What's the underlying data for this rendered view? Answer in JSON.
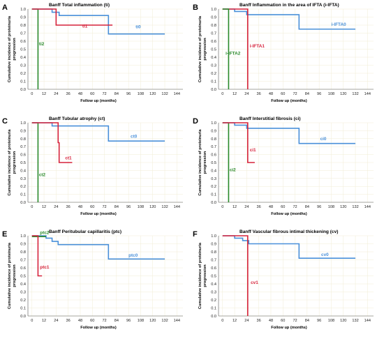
{
  "chart_data": [
    {
      "type": "line",
      "letter": "A",
      "title": "Banff Total inflammation (ti)",
      "xlabel": "Follow up (months)",
      "ylabel": "Cumulative incidence of proteinuria progression",
      "xticks": [
        0,
        12,
        24,
        36,
        48,
        60,
        72,
        84,
        96,
        108,
        120,
        132,
        144
      ],
      "yticks": [
        0.0,
        0.1,
        0.2,
        0.3,
        0.4,
        0.5,
        0.6,
        0.7,
        0.8,
        0.9,
        1.0
      ],
      "xlim": [
        -4,
        150
      ],
      "ylim": [
        0,
        1.0
      ],
      "grid": true,
      "series": [
        {
          "name": "ti2",
          "color": "#2a8a2a",
          "x": [
            0,
            6,
            6
          ],
          "y": [
            1.0,
            1.0,
            0.0
          ]
        },
        {
          "name": "ti0",
          "color": "#4a90d9",
          "x": [
            0,
            20,
            20,
            27,
            27,
            76,
            76,
            132
          ],
          "y": [
            1.0,
            1.0,
            0.96,
            0.96,
            0.92,
            0.92,
            0.69,
            0.69
          ]
        },
        {
          "name": "ti1",
          "color": "#d6223a",
          "x": [
            0,
            24,
            24,
            80
          ],
          "y": [
            1.0,
            1.0,
            0.8,
            0.8
          ]
        }
      ],
      "labels": [
        {
          "text": "ti2",
          "color": "#2a8a2a",
          "x": 7,
          "y": 0.55
        },
        {
          "text": "ti1",
          "color": "#d6223a",
          "x": 50,
          "y": 0.77
        },
        {
          "text": "ti0",
          "color": "#4a90d9",
          "x": 103,
          "y": 0.76
        }
      ]
    },
    {
      "type": "line",
      "letter": "B",
      "title": "Banff Inflammation in the area of IFTA (i-IFTA)",
      "xlabel": "Follow up (months)",
      "ylabel": "Cumulative incidence of proteinuria progression",
      "xticks": [
        0,
        12,
        24,
        36,
        48,
        60,
        72,
        84,
        96,
        108,
        120,
        132,
        144
      ],
      "yticks": [
        0.0,
        0.1,
        0.2,
        0.3,
        0.4,
        0.5,
        0.6,
        0.7,
        0.8,
        0.9,
        1.0
      ],
      "xlim": [
        -4,
        150
      ],
      "ylim": [
        0,
        1.0
      ],
      "grid": true,
      "series": [
        {
          "name": "i-IFTA0",
          "color": "#4a90d9",
          "x": [
            0,
            12,
            12,
            24,
            24,
            76,
            76,
            132
          ],
          "y": [
            1.0,
            1.0,
            0.97,
            0.97,
            0.93,
            0.93,
            0.75,
            0.75
          ]
        },
        {
          "name": "i-IFTA1",
          "color": "#d6223a",
          "x": [
            0,
            25,
            25
          ],
          "y": [
            1.0,
            1.0,
            0.0
          ]
        },
        {
          "name": "i-IFTA2",
          "color": "#2a8a2a",
          "x": [
            0,
            6,
            6
          ],
          "y": [
            1.0,
            1.0,
            0.0
          ]
        }
      ],
      "labels": [
        {
          "text": "i-IFTA0",
          "color": "#4a90d9",
          "x": 108,
          "y": 0.79
        },
        {
          "text": "i-IFTA1",
          "color": "#d6223a",
          "x": 27,
          "y": 0.52
        },
        {
          "text": "i-IFTA2",
          "color": "#2a8a2a",
          "x": 3,
          "y": 0.43
        }
      ]
    },
    {
      "type": "line",
      "letter": "C",
      "title": "Banff Tubular atrophy (ct)",
      "xlabel": "Follow up (months)",
      "ylabel": "Cumulative incidence of proteinuria progression",
      "xticks": [
        0,
        12,
        24,
        36,
        48,
        60,
        72,
        84,
        96,
        108,
        120,
        132,
        144
      ],
      "yticks": [
        0.0,
        0.1,
        0.2,
        0.3,
        0.4,
        0.5,
        0.6,
        0.7,
        0.8,
        0.9,
        1.0
      ],
      "xlim": [
        -4,
        150
      ],
      "ylim": [
        0,
        1.0
      ],
      "grid": true,
      "series": [
        {
          "name": "ct2",
          "color": "#2a8a2a",
          "x": [
            0,
            6,
            6
          ],
          "y": [
            1.0,
            1.0,
            0.0
          ]
        },
        {
          "name": "ct0",
          "color": "#4a90d9",
          "x": [
            0,
            20,
            20,
            76,
            76,
            132
          ],
          "y": [
            1.0,
            1.0,
            0.96,
            0.96,
            0.77,
            0.77
          ]
        },
        {
          "name": "ct1",
          "color": "#d6223a",
          "x": [
            0,
            26,
            26,
            27,
            27,
            40
          ],
          "y": [
            1.0,
            1.0,
            0.75,
            0.75,
            0.5,
            0.5
          ]
        }
      ],
      "labels": [
        {
          "text": "ct2",
          "color": "#2a8a2a",
          "x": 7,
          "y": 0.33
        },
        {
          "text": "ct1",
          "color": "#d6223a",
          "x": 33,
          "y": 0.54
        },
        {
          "text": "ct0",
          "color": "#4a90d9",
          "x": 98,
          "y": 0.81
        }
      ]
    },
    {
      "type": "line",
      "letter": "D",
      "title": "Banff Interstitial fibrosis (ci)",
      "xlabel": "Follow up (months)",
      "ylabel": "Cumulative incidence of proteinuria progression",
      "xticks": [
        0,
        12,
        24,
        36,
        48,
        60,
        72,
        84,
        96,
        108,
        120,
        132,
        144
      ],
      "yticks": [
        0.0,
        0.1,
        0.2,
        0.3,
        0.4,
        0.5,
        0.6,
        0.7,
        0.8,
        0.9,
        1.0
      ],
      "xlim": [
        -4,
        150
      ],
      "ylim": [
        0,
        1.0
      ],
      "grid": true,
      "series": [
        {
          "name": "ci2",
          "color": "#2a8a2a",
          "x": [
            0,
            6,
            6
          ],
          "y": [
            1.0,
            1.0,
            0.0
          ]
        },
        {
          "name": "ci0",
          "color": "#4a90d9",
          "x": [
            0,
            12,
            12,
            24,
            24,
            76,
            76,
            132
          ],
          "y": [
            1.0,
            1.0,
            0.97,
            0.97,
            0.93,
            0.93,
            0.74,
            0.74
          ]
        },
        {
          "name": "ci1",
          "color": "#d6223a",
          "x": [
            0,
            25,
            25,
            32
          ],
          "y": [
            1.0,
            1.0,
            0.5,
            0.5
          ]
        }
      ],
      "labels": [
        {
          "text": "ci2",
          "color": "#2a8a2a",
          "x": 7,
          "y": 0.39
        },
        {
          "text": "ci1",
          "color": "#d6223a",
          "x": 27,
          "y": 0.64
        },
        {
          "text": "ci0",
          "color": "#4a90d9",
          "x": 97,
          "y": 0.78
        }
      ]
    },
    {
      "type": "line",
      "letter": "E",
      "title": "Banff Peritubular capillaritis (ptc)",
      "xlabel": "Follow up (months)",
      "ylabel": "Cumulative incidence of proteinuria progression",
      "xticks": [
        0,
        12,
        24,
        36,
        48,
        60,
        72,
        84,
        96,
        108,
        120,
        132,
        144
      ],
      "yticks": [
        0.0,
        0.1,
        0.2,
        0.3,
        0.4,
        0.5,
        0.6,
        0.7,
        0.8,
        0.9,
        1.0
      ],
      "xlim": [
        -4,
        150
      ],
      "ylim": [
        0,
        1.0
      ],
      "grid": true,
      "series": [
        {
          "name": "ptc0",
          "color": "#4a90d9",
          "x": [
            0,
            14,
            14,
            20,
            20,
            26,
            26,
            76,
            76,
            132
          ],
          "y": [
            1.0,
            1.0,
            0.97,
            0.97,
            0.93,
            0.93,
            0.89,
            0.89,
            0.71,
            0.71
          ]
        },
        {
          "name": "ptc2",
          "color": "#2a8a2a",
          "x": [
            0,
            14
          ],
          "y": [
            0.99,
            0.99
          ]
        },
        {
          "name": "ptc1",
          "color": "#d6223a",
          "x": [
            0,
            6,
            6,
            10
          ],
          "y": [
            1.0,
            1.0,
            0.5,
            0.5
          ]
        }
      ],
      "labels": [
        {
          "text": "ptc2",
          "color": "#2a8a2a",
          "x": 8,
          "y": 1.02
        },
        {
          "text": "ptc1",
          "color": "#d6223a",
          "x": 8,
          "y": 0.59
        },
        {
          "text": "ptc0",
          "color": "#4a90d9",
          "x": 96,
          "y": 0.74
        }
      ]
    },
    {
      "type": "line",
      "letter": "F",
      "title": "Banff Vascular fibrous intimal thickening (cv)",
      "xlabel": "Follow up (months)",
      "ylabel": "Cumulative incidence of proteinuria progression",
      "xticks": [
        0,
        12,
        24,
        36,
        48,
        60,
        72,
        84,
        96,
        108,
        120,
        132,
        144
      ],
      "yticks": [
        0.0,
        0.1,
        0.2,
        0.3,
        0.4,
        0.5,
        0.6,
        0.7,
        0.8,
        0.9,
        1.0
      ],
      "xlim": [
        -4,
        150
      ],
      "ylim": [
        0,
        1.0
      ],
      "grid": true,
      "series": [
        {
          "name": "cv0",
          "color": "#4a90d9",
          "x": [
            0,
            12,
            12,
            20,
            20,
            26,
            26,
            76,
            76,
            132
          ],
          "y": [
            1.0,
            1.0,
            0.97,
            0.97,
            0.94,
            0.94,
            0.9,
            0.9,
            0.72,
            0.72
          ]
        },
        {
          "name": "cv1",
          "color": "#d6223a",
          "x": [
            0,
            25,
            25
          ],
          "y": [
            1.0,
            1.0,
            0.0
          ]
        }
      ],
      "labels": [
        {
          "text": "cv1",
          "color": "#d6223a",
          "x": 28,
          "y": 0.4
        },
        {
          "text": "cv0",
          "color": "#4a90d9",
          "x": 98,
          "y": 0.75
        }
      ]
    }
  ]
}
